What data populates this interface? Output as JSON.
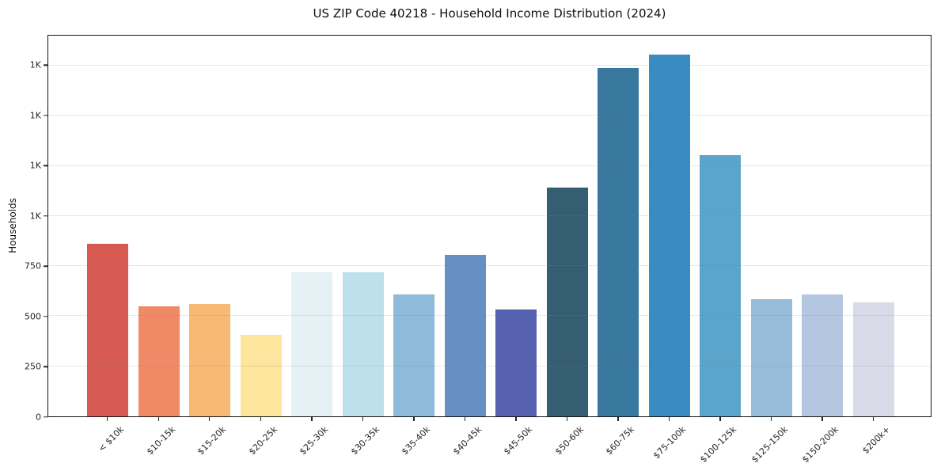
{
  "chart_data": {
    "type": "bar",
    "title": "US ZIP Code 40218 - Household Income Distribution (2024)",
    "xlabel": "",
    "ylabel": "Households",
    "categories": [
      "< $10k",
      "$10-15k",
      "$15-20k",
      "$20-25k",
      "$25-30k",
      "$30-35k",
      "$35-40k",
      "$40-45k",
      "$45-50k",
      "$50-60k",
      "$60-75k",
      "$75-100k",
      "$100-125k",
      "$125-150k",
      "$150-200k",
      "$200k+"
    ],
    "values": [
      860,
      550,
      560,
      405,
      720,
      720,
      610,
      805,
      535,
      1140,
      1740,
      1805,
      1305,
      585,
      610,
      570
    ],
    "bar_colors": [
      "#d65a52",
      "#f08a66",
      "#f9b873",
      "#fde59d",
      "#e4f1f5",
      "#bde0ec",
      "#8dbbd9",
      "#6690c4",
      "#5560ae",
      "#355e73",
      "#38779e",
      "#388cc2",
      "#5ba4cb",
      "#97bcd9",
      "#b4c7e0",
      "#d9dbe8"
    ],
    "y_ticks": [
      {
        "value": 0,
        "label": "0"
      },
      {
        "value": 250,
        "label": "250"
      },
      {
        "value": 500,
        "label": "500"
      },
      {
        "value": 750,
        "label": "750"
      },
      {
        "value": 1000,
        "label": "1K"
      },
      {
        "value": 1250,
        "label": "1K"
      },
      {
        "value": 1500,
        "label": "1K"
      },
      {
        "value": 1750,
        "label": "1K"
      }
    ],
    "ylim": [
      0,
      1900
    ],
    "grid": "horizontal",
    "legend_position": "none",
    "x_tick_rotation_deg": 45
  }
}
